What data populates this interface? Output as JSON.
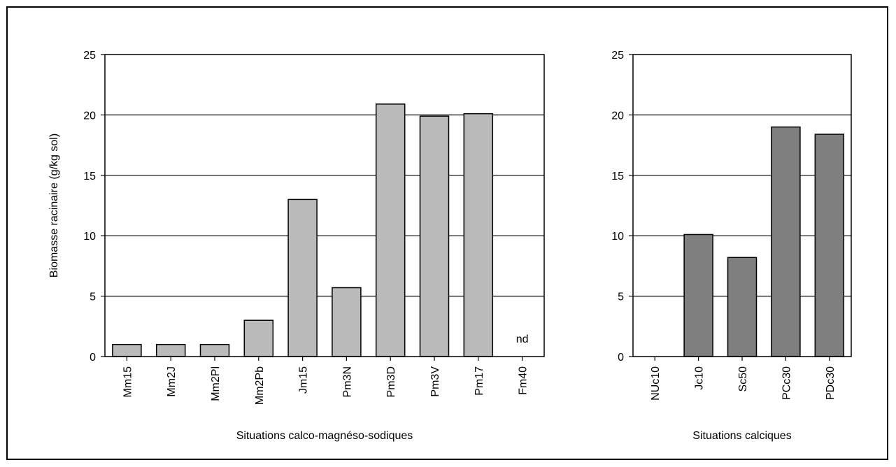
{
  "chart_data": [
    {
      "type": "bar",
      "ylabel": "Biomasse racinaire (g/kg sol)",
      "xlabel": "Situations calco-magnéso-sodiques",
      "ylim": [
        0,
        25
      ],
      "yticks": [
        "0",
        "5",
        "10",
        "15",
        "20",
        "25"
      ],
      "grid": true,
      "color": "#bababa",
      "categories": [
        "Mm15",
        "Mm2J",
        "Mm2Pl",
        "Mm2Pb",
        "Jm15",
        "Pm3N",
        "Pm3D",
        "Pm3V",
        "Pm17",
        "Fm40"
      ],
      "values": [
        1,
        1,
        1,
        3,
        13,
        5.7,
        20.9,
        19.9,
        20.1,
        null
      ],
      "annotations": [
        {
          "category": "Fm40",
          "text": "nd"
        }
      ]
    },
    {
      "type": "bar",
      "xlabel": "Situations calciques",
      "ylim": [
        0,
        25
      ],
      "yticks": [
        "0",
        "5",
        "10",
        "15",
        "20",
        "25"
      ],
      "grid": true,
      "color": "#7f7f7f",
      "categories": [
        "NUc10",
        "Jc10",
        "Sc50",
        "PCc30",
        "PDc30"
      ],
      "values": [
        0,
        10.1,
        8.2,
        19,
        18.4
      ]
    }
  ]
}
